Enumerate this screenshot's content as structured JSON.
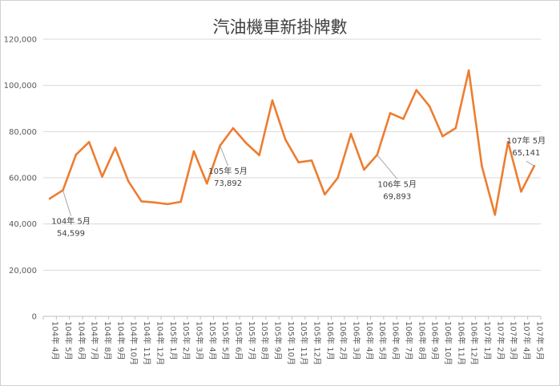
{
  "chart_data": {
    "type": "line",
    "title": "汽油機車新掛牌數",
    "xlabel": "",
    "ylabel": "",
    "ylim": [
      0,
      120000
    ],
    "yticks": [
      0,
      20000,
      40000,
      60000,
      80000,
      100000,
      120000
    ],
    "ytick_labels": [
      "0",
      "20,000",
      "40,000",
      "60,000",
      "80,000",
      "100,000",
      "120,000"
    ],
    "grid": true,
    "legend": "none",
    "categories": [
      "104年 4月",
      "104年 5月",
      "104年 6月",
      "104年 7月",
      "104年 8月",
      "104年 9月",
      "104年 10月",
      "104年 11月",
      "104年 12月",
      "105年 1月",
      "105年 2月",
      "105年 3月",
      "105年 4月",
      "105年 5月",
      "105年 6月",
      "105年 7月",
      "105年 8月",
      "105年 9月",
      "105年 10月",
      "105年 11月",
      "105年 12月",
      "106年 1月",
      "106年 2月",
      "106年 3月",
      "106年 4月",
      "106年 5月",
      "106年 6月",
      "106年 7月",
      "106年 8月",
      "106年 9月",
      "106年 10月",
      "106年 11月",
      "106年 12月",
      "107年 1月",
      "107年 2月",
      "107年 3月",
      "107年 4月",
      "107年 5月"
    ],
    "series": [
      {
        "values": [
          51000,
          54599,
          70000,
          75500,
          60500,
          73000,
          58500,
          49800,
          49300,
          48600,
          49600,
          71500,
          57500,
          73892,
          81500,
          75000,
          69800,
          93500,
          76500,
          66700,
          67500,
          52800,
          60000,
          79000,
          63500,
          69893,
          88000,
          85500,
          98000,
          91000,
          78000,
          81500,
          106500,
          65000,
          44000,
          75500,
          54000,
          65141
        ],
        "color": "#ED7D31"
      }
    ],
    "annotations": [
      {
        "category": "104年 5月",
        "label": "104年 5月",
        "value_label": "54,599"
      },
      {
        "category": "105年 5月",
        "label": "105年 5月",
        "value_label": "73,892"
      },
      {
        "category": "106年 5月",
        "label": "106年 5月",
        "value_label": "69,893"
      },
      {
        "category": "107年 5月",
        "label": "107年 5月",
        "value_label": "65,141"
      }
    ]
  }
}
